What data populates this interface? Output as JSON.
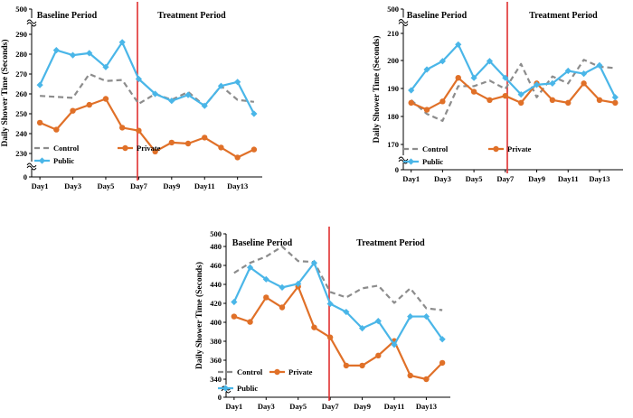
{
  "colors": {
    "control": "#8c8c8c",
    "private": "#e07028",
    "public": "#4ab6e8",
    "divider": "#e03030",
    "axis": "#000000"
  },
  "chart_data": [
    {
      "type": "line",
      "title": "",
      "xlabel": "",
      "ylabel": "Daily Shower Time (Seconds)",
      "x": [
        1,
        2,
        3,
        4,
        5,
        6,
        7,
        8,
        9,
        10,
        11,
        12,
        13,
        14
      ],
      "x_tick_labels": [
        "Day1",
        "Day3",
        "Day5",
        "Day7",
        "Day9",
        "Day11",
        "Day13"
      ],
      "y_tick_labels": [
        "0",
        "230",
        "240",
        "250",
        "260",
        "270",
        "280",
        "290",
        "500"
      ],
      "y_breaks": "axis broken between 0 and 230, and between 290 and 500",
      "ylim": [
        230,
        290
      ],
      "divider_after_day": 7,
      "periods": [
        "Baseline Period",
        "Treatment Period"
      ],
      "legend": [
        "Control",
        "Private",
        "Public"
      ],
      "series": [
        {
          "name": "Control",
          "style": "dashed",
          "values": [
            259,
            258.5,
            258,
            270,
            266.5,
            267,
            255,
            260,
            257,
            261,
            254,
            264,
            257,
            256
          ]
        },
        {
          "name": "Private",
          "style": "solid-circle",
          "values": [
            245.5,
            242,
            251.5,
            254.5,
            257.5,
            243,
            241.5,
            231,
            235.5,
            235,
            238,
            233,
            228,
            232
          ]
        },
        {
          "name": "Public",
          "style": "solid-diamond",
          "values": [
            264.5,
            282,
            279.5,
            280.5,
            273.5,
            286,
            267.5,
            260,
            256.5,
            259.5,
            254,
            264,
            266,
            250
          ]
        }
      ]
    },
    {
      "type": "line",
      "title": "",
      "xlabel": "",
      "ylabel": "Daily Shower Time (Seconds)",
      "x": [
        1,
        2,
        3,
        4,
        5,
        6,
        7,
        8,
        9,
        10,
        11,
        12,
        13,
        14
      ],
      "x_tick_labels": [
        "Day1",
        "Day3",
        "Day5",
        "Day7",
        "Day9",
        "Day11",
        "Day13"
      ],
      "y_tick_labels": [
        "0",
        "170",
        "180",
        "190",
        "200",
        "210",
        "500"
      ],
      "y_breaks": "axis broken between 0 and 170, and between 210 and 500",
      "ylim": [
        170,
        210
      ],
      "divider_after_day": 7,
      "periods": [
        "Baseline Period",
        "Treatment Period"
      ],
      "legend": [
        "Control",
        "Private",
        "Public"
      ],
      "series": [
        {
          "name": "Control",
          "style": "dashed",
          "values": [
            186,
            181,
            178.5,
            191,
            191,
            193,
            190,
            199,
            187,
            194.5,
            192,
            200.5,
            198,
            197.5
          ]
        },
        {
          "name": "Private",
          "style": "solid-circle",
          "values": [
            185,
            182.5,
            185.5,
            194,
            189,
            186,
            187.5,
            185,
            192,
            186,
            185,
            192,
            186,
            185
          ]
        },
        {
          "name": "Public",
          "style": "solid-diamond",
          "values": [
            189.5,
            197,
            200,
            206,
            194,
            200,
            194,
            188,
            191.5,
            192,
            196.5,
            195.5,
            198.5,
            187
          ]
        }
      ]
    },
    {
      "type": "line",
      "title": "",
      "xlabel": "",
      "ylabel": "Daily Shower Time (Seconds)",
      "x": [
        1,
        2,
        3,
        4,
        5,
        6,
        7,
        8,
        9,
        10,
        11,
        12,
        13,
        14
      ],
      "x_tick_labels": [
        "Day1",
        "Day3",
        "Day5",
        "Day7",
        "Day9",
        "Day11",
        "Day13"
      ],
      "y_tick_labels": [
        "0",
        "340",
        "360",
        "380",
        "400",
        "420",
        "440",
        "460",
        "480",
        "500"
      ],
      "y_breaks": "axis broken between 0 and 340",
      "ylim": [
        340,
        500
      ],
      "divider_after_day": 7,
      "periods": [
        "Baseline Period",
        "Treatment Period"
      ],
      "legend": [
        "Control",
        "Private",
        "Public"
      ],
      "series": [
        {
          "name": "Control",
          "style": "dashed",
          "values": [
            457,
            468,
            475,
            486,
            470,
            469,
            436,
            430,
            440,
            443,
            424,
            440,
            418,
            416
          ]
        },
        {
          "name": "Private",
          "style": "solid-circle",
          "values": [
            409,
            403,
            430,
            419,
            442,
            397,
            386,
            355,
            355,
            366,
            382,
            344,
            340,
            358
          ]
        },
        {
          "name": "Public",
          "style": "solid-diamond",
          "values": [
            425,
            463,
            450,
            441,
            445,
            468,
            423,
            414,
            396,
            404,
            378,
            409,
            409,
            384
          ]
        }
      ]
    }
  ]
}
